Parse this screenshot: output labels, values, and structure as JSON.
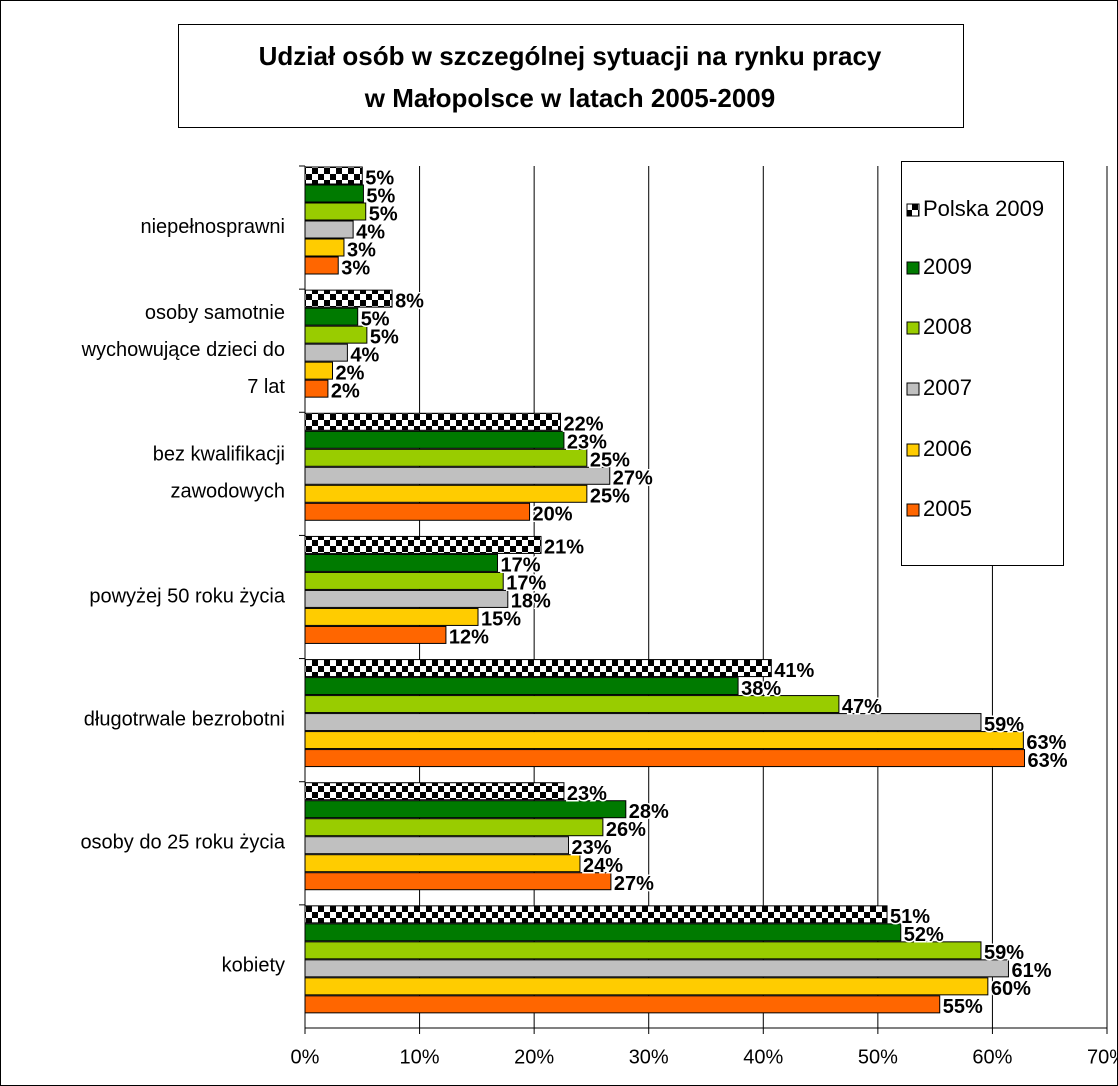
{
  "chart_data": {
    "type": "barh",
    "title": [
      "Udział osób w szczególnej sytuacji na rynku pracy",
      "w Małopolsce w latach 2005-2009"
    ],
    "categories": [
      [
        "niepełnosprawni"
      ],
      [
        "osoby samotnie",
        "wychowujące dzieci do",
        "7 lat"
      ],
      [
        "bez kwalifikacji",
        "zawodowych"
      ],
      [
        "powyżej 50 roku życia"
      ],
      [
        "długotrwale bezrobotni"
      ],
      [
        "osoby do 25 roku życia"
      ],
      [
        "kobiety"
      ]
    ],
    "series": [
      {
        "name": "Polska 2009",
        "color": "checkered",
        "values": [
          5,
          7.6,
          22.3,
          20.6,
          40.7,
          22.6,
          50.8
        ],
        "value_labels": [
          "5%",
          "8%",
          "22%",
          "21%",
          "41%",
          "23%",
          "51%"
        ]
      },
      {
        "name": "2009",
        "color": "#007a00",
        "values": [
          5.1,
          4.6,
          22.6,
          16.8,
          37.8,
          28,
          52
        ],
        "value_labels": [
          "5%",
          "5%",
          "23%",
          "17%",
          "38%",
          "28%",
          "52%"
        ]
      },
      {
        "name": "2008",
        "color": "#99cc00",
        "values": [
          5.3,
          5.4,
          24.6,
          17.3,
          46.6,
          26,
          59
        ],
        "value_labels": [
          "5%",
          "5%",
          "25%",
          "17%",
          "47%",
          "26%",
          "59%"
        ]
      },
      {
        "name": "2007",
        "color": "#c0c0c0",
        "values": [
          4.2,
          3.7,
          26.6,
          17.7,
          59,
          23,
          61.4
        ],
        "value_labels": [
          "4%",
          "4%",
          "27%",
          "18%",
          "59%",
          "23%",
          "61%"
        ]
      },
      {
        "name": "2006",
        "color": "#ffcc00",
        "values": [
          3.4,
          2.4,
          24.6,
          15.1,
          62.7,
          24,
          59.6
        ],
        "value_labels": [
          "3%",
          "2%",
          "25%",
          "15%",
          "63%",
          "24%",
          "60%"
        ]
      },
      {
        "name": "2005",
        "color": "#ff6600",
        "values": [
          2.9,
          2.0,
          19.6,
          12.3,
          62.8,
          26.7,
          55.4
        ],
        "value_labels": [
          "3%",
          "2%",
          "20%",
          "12%",
          "63%",
          "27%",
          "55%"
        ]
      }
    ],
    "xlim": [
      0,
      70
    ],
    "xticks": [
      {
        "value": 0,
        "label": "0%"
      },
      {
        "value": 10,
        "label": "10%"
      },
      {
        "value": 20,
        "label": "20%"
      },
      {
        "value": 30,
        "label": "30%"
      },
      {
        "value": 40,
        "label": "40%"
      },
      {
        "value": 50,
        "label": "50%"
      },
      {
        "value": 60,
        "label": "60%"
      },
      {
        "value": 70,
        "label": "70%"
      }
    ],
    "grid": true,
    "legend": "upper right"
  }
}
